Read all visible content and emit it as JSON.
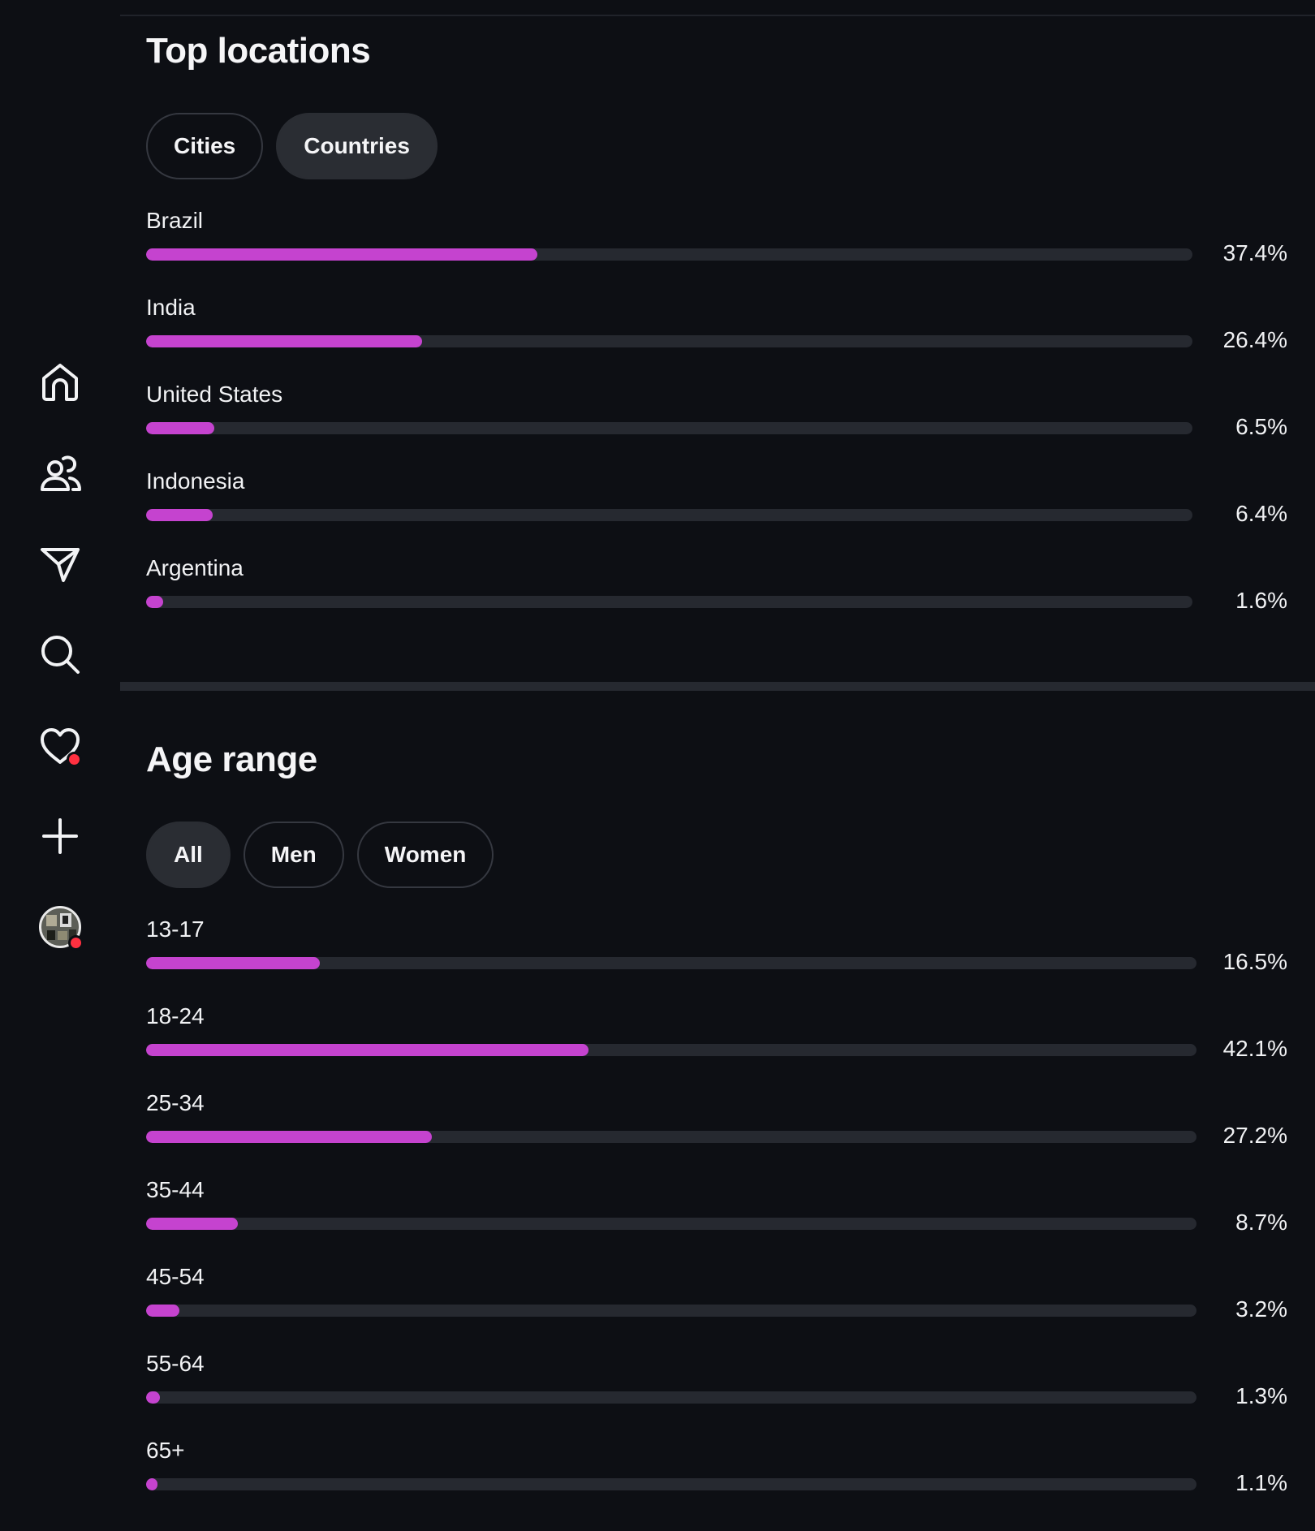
{
  "sidebar": {
    "items": [
      {
        "name": "nav-home",
        "icon": "home-icon"
      },
      {
        "name": "nav-friends",
        "icon": "users-icon"
      },
      {
        "name": "nav-messages",
        "icon": "paper-plane-icon"
      },
      {
        "name": "nav-search",
        "icon": "search-icon"
      },
      {
        "name": "nav-activity",
        "icon": "heart-icon",
        "has_notification": true
      },
      {
        "name": "nav-create",
        "icon": "plus-icon"
      },
      {
        "name": "nav-profile",
        "icon": "avatar",
        "has_notification": true
      }
    ],
    "notification_color": "#ff3040"
  },
  "accent_color": "#c543cf",
  "locations": {
    "title": "Top locations",
    "tabs": [
      {
        "label": "Cities",
        "active": false
      },
      {
        "label": "Countries",
        "active": true
      }
    ],
    "rows": [
      {
        "label": "Brazil",
        "value": "37.4%",
        "fraction": 0.374
      },
      {
        "label": "India",
        "value": "26.4%",
        "fraction": 0.264
      },
      {
        "label": "United States",
        "value": "6.5%",
        "fraction": 0.065
      },
      {
        "label": "Indonesia",
        "value": "6.4%",
        "fraction": 0.064
      },
      {
        "label": "Argentina",
        "value": "1.6%",
        "fraction": 0.016
      }
    ]
  },
  "age": {
    "title": "Age range",
    "tabs": [
      {
        "label": "All",
        "active": true
      },
      {
        "label": "Men",
        "active": false
      },
      {
        "label": "Women",
        "active": false
      }
    ],
    "rows": [
      {
        "label": "13-17",
        "value": "16.5%",
        "fraction": 0.165
      },
      {
        "label": "18-24",
        "value": "42.1%",
        "fraction": 0.421
      },
      {
        "label": "25-34",
        "value": "27.2%",
        "fraction": 0.272
      },
      {
        "label": "35-44",
        "value": "8.7%",
        "fraction": 0.087
      },
      {
        "label": "45-54",
        "value": "3.2%",
        "fraction": 0.032
      },
      {
        "label": "55-64",
        "value": "1.3%",
        "fraction": 0.013
      },
      {
        "label": "65+",
        "value": "1.1%",
        "fraction": 0.011
      }
    ]
  }
}
